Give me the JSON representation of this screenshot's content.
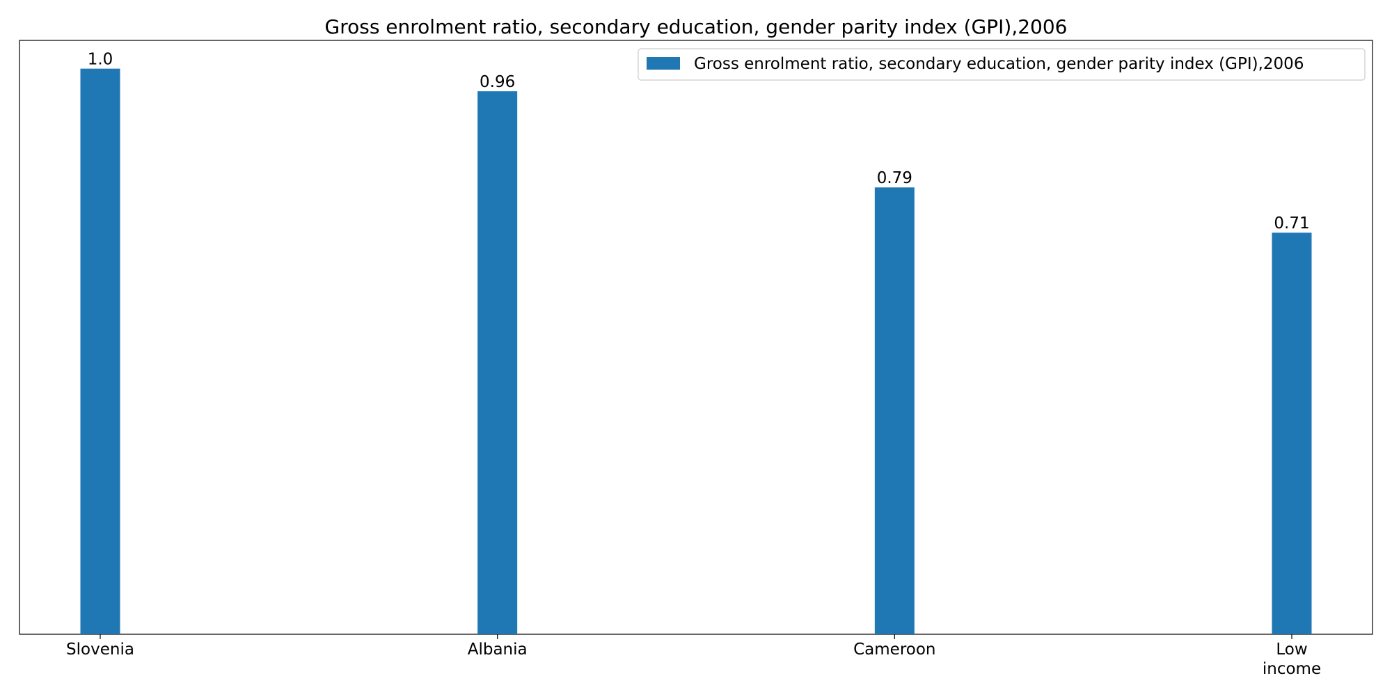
{
  "chart_data": {
    "type": "bar",
    "title": "Gross enrolment ratio, secondary education, gender parity index (GPI),2006",
    "categories": [
      [
        "Slovenia"
      ],
      [
        "Albania"
      ],
      [
        "Cameroon"
      ],
      [
        "Low",
        "income"
      ]
    ],
    "series": [
      {
        "name": "Gross enrolment ratio, secondary education, gender parity index (GPI),2006",
        "values": [
          1.0,
          0.96,
          0.79,
          0.71
        ],
        "labels": [
          "1.0",
          "0.96",
          "0.79",
          "0.71"
        ],
        "color": "#1f77b4"
      }
    ],
    "xlabel": "",
    "ylabel": "",
    "ylim": [
      0,
      1.05
    ],
    "y_axis_visible": false,
    "grid": false,
    "legend_position": "top-right"
  }
}
